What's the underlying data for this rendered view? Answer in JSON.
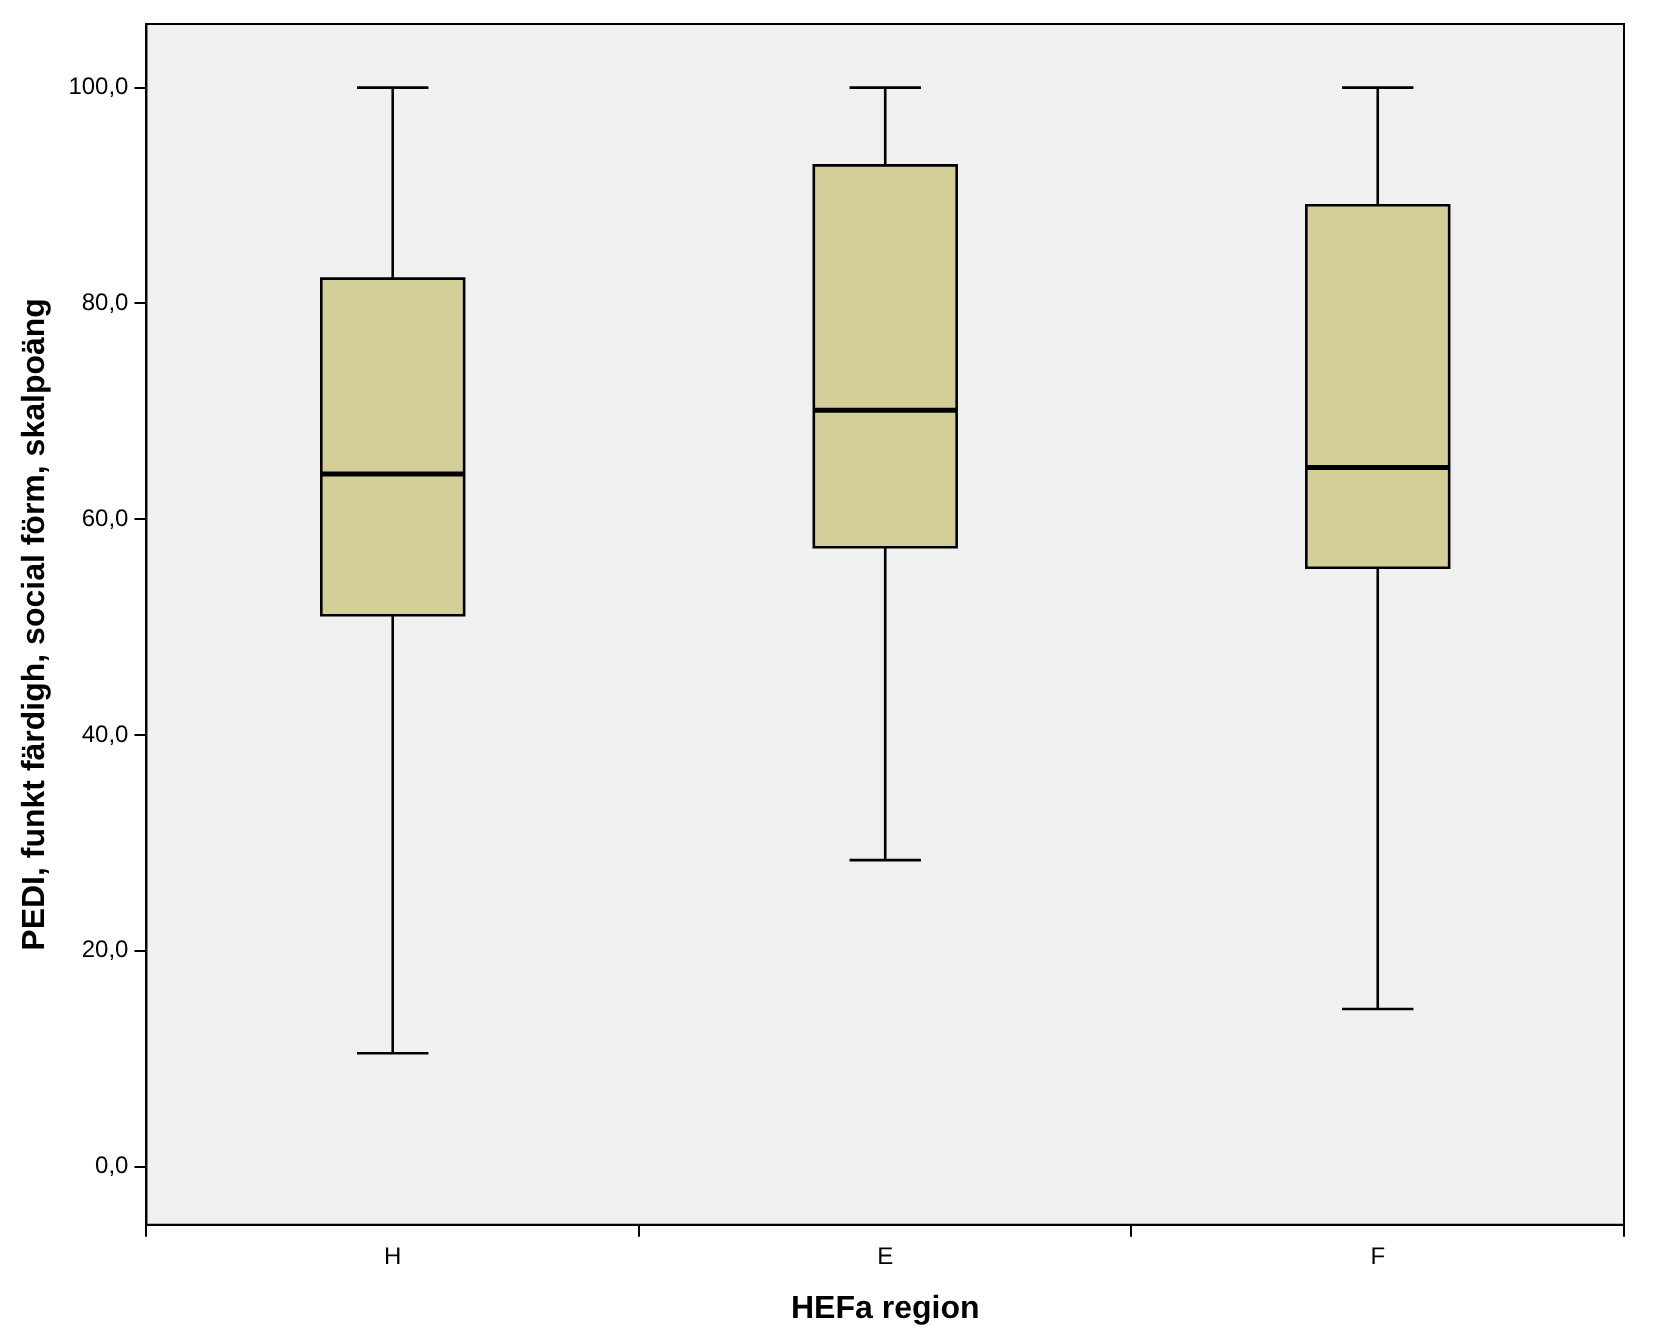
{
  "chart_data": {
    "type": "box",
    "xlabel": "HEFa region",
    "ylabel": "PEDI, funkt färdigh, social förm, skalpoäng",
    "categories": [
      "H",
      "E",
      "F"
    ],
    "boxes": [
      {
        "low": 10.5,
        "q1": 51.1,
        "median": 64.2,
        "q3": 82.3,
        "high": 100
      },
      {
        "low": 28.4,
        "q1": 57.4,
        "median": 70.1,
        "q3": 92.8,
        "high": 100
      },
      {
        "low": 14.6,
        "q1": 55.5,
        "median": 64.8,
        "q3": 89.1,
        "high": 100
      }
    ],
    "color": "#d4cf98",
    "ylim": [
      -5.4,
      105.9
    ],
    "yticks": [
      {
        "value": 0,
        "label": "0,0"
      },
      {
        "value": 20,
        "label": "20,0"
      },
      {
        "value": 40,
        "label": "40,0"
      },
      {
        "value": 60,
        "label": "60,0"
      },
      {
        "value": 80,
        "label": "80,0"
      },
      {
        "value": 100,
        "label": "100,0"
      }
    ],
    "grid": false,
    "legend": false
  }
}
